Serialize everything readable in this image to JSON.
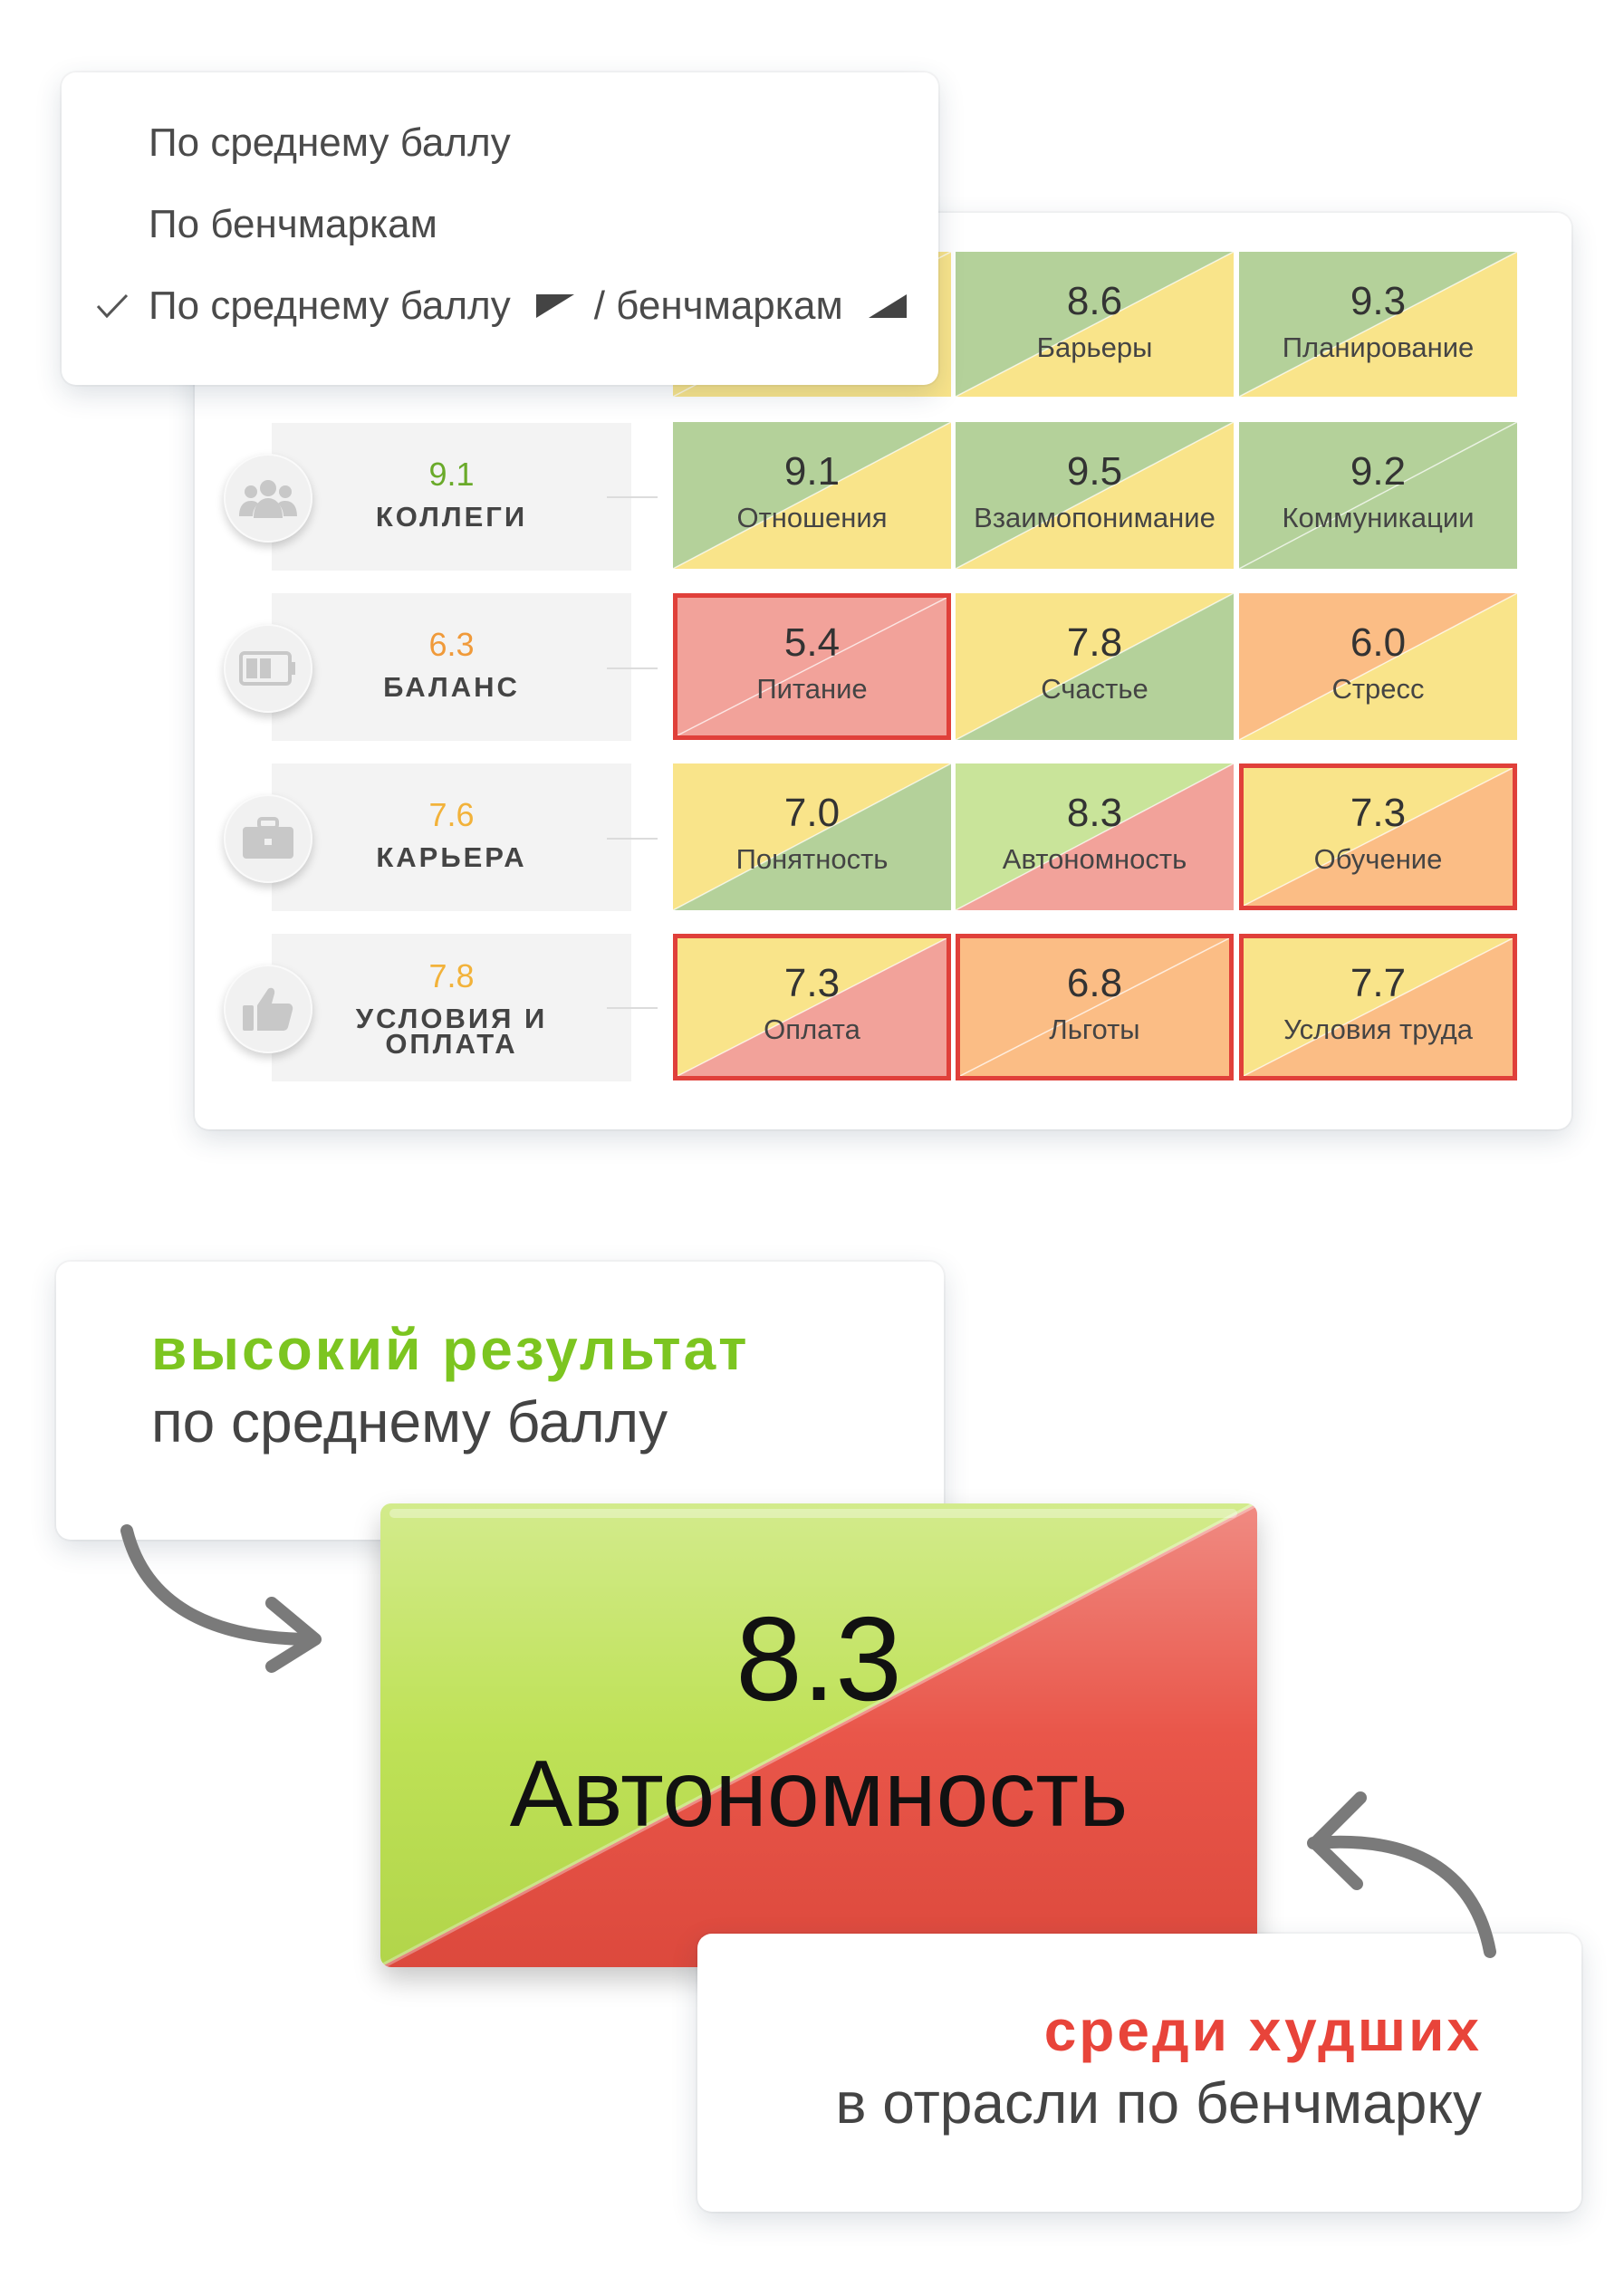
{
  "dropdown": {
    "items": [
      {
        "label": "По среднему баллу",
        "checked": false
      },
      {
        "label": "По бенчмаркам",
        "checked": false
      },
      {
        "label_a": "По среднему баллу",
        "label_sep": "/ бенчмаркам",
        "checked": true
      }
    ]
  },
  "categories": [
    {
      "score": "9.1",
      "name": "КОЛЛЕГИ",
      "icon": "people-icon",
      "score_color": "#6aaa2a"
    },
    {
      "score": "6.3",
      "name": "БАЛАНС",
      "icon": "battery-icon",
      "score_color": "#f09a3a"
    },
    {
      "score": "7.6",
      "name": "КАРЬЕРА",
      "icon": "briefcase-icon",
      "score_color": "#f2b23a"
    },
    {
      "score": "7.8",
      "name": "УСЛОВИЯ И ОПЛАТА",
      "icon": "thumbs-up-icon",
      "score_color": "#f2b23a"
    }
  ],
  "palette": {
    "green": "#b4d19a",
    "yellow": "#f9e48a",
    "red": "#f2a29a",
    "orange": "#fbbd85",
    "lime": "#c9e49a"
  },
  "rows": [
    [
      {
        "value": "",
        "label": "",
        "avg": "yellow",
        "bench": "yellow",
        "flag": false
      },
      {
        "value": "8.6",
        "label": "Барьеры",
        "avg": "green",
        "bench": "yellow",
        "flag": false
      },
      {
        "value": "9.3",
        "label": "Планирование",
        "avg": "green",
        "bench": "yellow",
        "flag": false
      }
    ],
    [
      {
        "value": "9.1",
        "label": "Отношения",
        "avg": "green",
        "bench": "yellow",
        "flag": false
      },
      {
        "value": "9.5",
        "label": "Взаимопонимание",
        "avg": "green",
        "bench": "yellow",
        "flag": false
      },
      {
        "value": "9.2",
        "label": "Коммуникации",
        "avg": "green",
        "bench": "green",
        "flag": false
      }
    ],
    [
      {
        "value": "5.4",
        "label": "Питание",
        "avg": "red",
        "bench": "red",
        "flag": true
      },
      {
        "value": "7.8",
        "label": "Счастье",
        "avg": "yellow",
        "bench": "green",
        "flag": false
      },
      {
        "value": "6.0",
        "label": "Стресс",
        "avg": "orange",
        "bench": "yellow",
        "flag": false
      }
    ],
    [
      {
        "value": "7.0",
        "label": "Понятность",
        "avg": "yellow",
        "bench": "green",
        "flag": false
      },
      {
        "value": "8.3",
        "label": "Автономность",
        "avg": "lime",
        "bench": "red",
        "flag": false
      },
      {
        "value": "7.3",
        "label": "Обучение",
        "avg": "yellow",
        "bench": "orange",
        "flag": true
      }
    ],
    [
      {
        "value": "7.3",
        "label": "Оплата",
        "avg": "yellow",
        "bench": "red",
        "flag": true
      },
      {
        "value": "6.8",
        "label": "Льготы",
        "avg": "orange",
        "bench": "orange",
        "flag": true
      },
      {
        "value": "7.7",
        "label": "Условия труда",
        "avg": "yellow",
        "bench": "orange",
        "flag": true
      }
    ]
  ],
  "callout_high": {
    "title": "высокий результат",
    "subtitle": "по среднему баллу",
    "title_color": "#7cc520"
  },
  "callout_low": {
    "title": "среди худших",
    "subtitle": "в отрасли по бенчмарку",
    "title_color": "#e8443a"
  },
  "big_tile": {
    "value": "8.3",
    "label": "Автономность",
    "avg_color": "#bbe04e",
    "bench_color": "#e84d40"
  }
}
